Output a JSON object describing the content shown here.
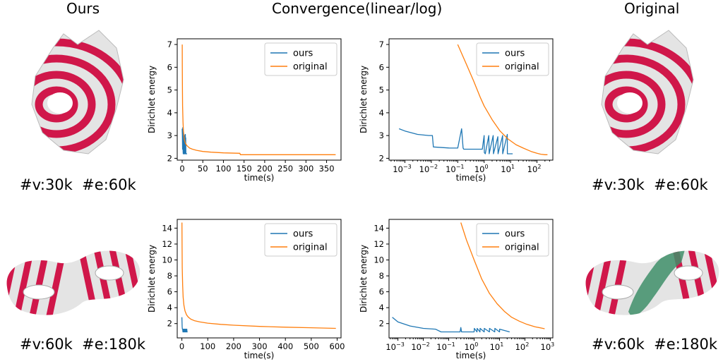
{
  "headers": {
    "ours": "Ours",
    "convergence": "Convergence(linear/log)",
    "original": "Original"
  },
  "rows": [
    {
      "stats_left": "#v:30k  #e:60k",
      "stats_right": "#v:30k  #e:60k"
    },
    {
      "stats_left": "#v:60k  #e:180k",
      "stats_right": "#v:60k  #e:180k"
    }
  ],
  "colors": {
    "ours": "#1f77b4",
    "original": "#ff7f0e",
    "stripe_red": "#d0174a",
    "stripe_white": "#e4e4e4",
    "seam_green": "#3f8f6a"
  },
  "icons": [
    "cat-head-mesh",
    "double-torus-mesh"
  ],
  "chart_data": [
    {
      "type": "line",
      "scale": "linear",
      "xlabel": "time(s)",
      "ylabel": "Dirichlet energy",
      "xlim": [
        -12,
        385
      ],
      "ylim": [
        1.92,
        7.25
      ],
      "xticks": [
        0,
        50,
        100,
        150,
        200,
        250,
        300,
        350
      ],
      "yticks": [
        2,
        3,
        4,
        5,
        6,
        7
      ],
      "legend": "top-right",
      "series": [
        {
          "name": "ours",
          "color": "#1f77b4",
          "x": [
            0,
            0.5,
            1,
            1.5,
            2,
            2.5,
            3,
            3.3,
            3.6,
            4,
            4.5,
            5,
            5.3,
            5.6,
            6,
            6.5,
            7,
            7.3,
            7.6,
            8,
            8.5,
            9,
            9.3,
            10,
            12
          ],
          "y": [
            3.3,
            3.0,
            2.4,
            3.35,
            2.4,
            2.2,
            2.9,
            2.2,
            3.0,
            2.2,
            3.05,
            2.2,
            2.9,
            2.2,
            3.0,
            2.2,
            2.9,
            2.2,
            3.05,
            2.2,
            2.9,
            2.2,
            2.2,
            2.2,
            2.2
          ]
        },
        {
          "name": "original",
          "color": "#ff7f0e",
          "x": [
            0.1,
            0.3,
            0.6,
            1,
            2,
            3,
            5,
            8,
            12,
            18,
            25,
            35,
            50,
            70,
            100,
            140,
            141,
            200,
            260,
            320,
            372
          ],
          "y": [
            7.0,
            6.0,
            5.0,
            4.3,
            3.6,
            3.2,
            2.85,
            2.65,
            2.55,
            2.45,
            2.4,
            2.35,
            2.3,
            2.27,
            2.24,
            2.22,
            2.16,
            2.16,
            2.16,
            2.16,
            2.16
          ]
        }
      ]
    },
    {
      "type": "line",
      "scale": "log-x",
      "xlabel": "time(s)",
      "ylabel": "Dirichlet energy",
      "xlim_log10": [
        -3.6,
        2.6
      ],
      "ylim": [
        1.92,
        7.25
      ],
      "xtick_exponents": [
        -3,
        -2,
        -1,
        0,
        1,
        2
      ],
      "yticks": [
        2,
        3,
        4,
        5,
        6,
        7
      ],
      "legend": "top-right",
      "series": [
        {
          "name": "ours",
          "color": "#1f77b4",
          "x": [
            0.0006,
            0.001,
            0.003,
            0.008,
            0.011,
            0.012,
            0.05,
            0.1,
            0.14,
            0.16,
            0.17,
            0.5,
            0.85,
            1.0,
            1.02,
            1.1,
            1.5,
            1.55,
            2.2,
            2.25,
            3.3,
            3.35,
            5.0,
            5.05,
            7.5,
            7.55,
            12
          ],
          "y": [
            3.3,
            3.2,
            3.05,
            3.0,
            3.0,
            2.5,
            2.45,
            2.45,
            3.3,
            2.45,
            2.4,
            2.4,
            2.4,
            3.0,
            2.25,
            2.2,
            3.0,
            2.2,
            3.0,
            2.2,
            2.95,
            2.2,
            3.0,
            2.2,
            3.05,
            2.2,
            2.2
          ]
        },
        {
          "name": "original",
          "color": "#ff7f0e",
          "x": [
            0.1,
            0.2,
            0.4,
            0.7,
            1,
            2,
            4,
            8,
            16,
            30,
            60,
            100,
            140,
            200,
            250
          ],
          "y": [
            7.0,
            6.2,
            5.4,
            4.7,
            4.3,
            3.7,
            3.2,
            2.85,
            2.6,
            2.45,
            2.3,
            2.22,
            2.18,
            2.16,
            2.16
          ]
        }
      ]
    },
    {
      "type": "line",
      "scale": "linear",
      "xlabel": "time(s)",
      "ylabel": "Dirichlet energy",
      "xlim": [
        -18,
        615
      ],
      "ylim": [
        0.2,
        15.1
      ],
      "xticks": [
        0,
        100,
        200,
        300,
        400,
        500,
        600
      ],
      "yticks": [
        2,
        4,
        6,
        8,
        10,
        12,
        14
      ],
      "legend": "top-right",
      "series": [
        {
          "name": "ours",
          "color": "#1f77b4",
          "x": [
            0,
            1,
            2,
            3,
            4,
            5,
            6,
            7,
            8,
            9,
            10,
            11,
            12,
            13,
            14,
            15,
            16,
            17,
            18,
            19,
            20,
            22
          ],
          "y": [
            2.8,
            1.6,
            1.3,
            1.3,
            0.95,
            1.3,
            0.95,
            1.3,
            0.95,
            1.3,
            0.95,
            1.3,
            0.95,
            1.3,
            0.95,
            1.3,
            0.95,
            1.3,
            0.95,
            1.3,
            0.95,
            0.95
          ]
        },
        {
          "name": "original",
          "color": "#ff7f0e",
          "x": [
            0.3,
            0.8,
            1.5,
            3,
            5,
            8,
            12,
            18,
            25,
            35,
            50,
            70,
            100,
            150,
            200,
            300,
            400,
            500,
            595
          ],
          "y": [
            14.7,
            11.5,
            9.0,
            6.8,
            5.3,
            4.3,
            3.6,
            3.1,
            2.8,
            2.55,
            2.35,
            2.2,
            2.05,
            1.9,
            1.8,
            1.65,
            1.55,
            1.48,
            1.4
          ]
        }
      ]
    },
    {
      "type": "line",
      "scale": "log-x",
      "xlabel": "time(s)",
      "ylabel": "Dirichlet energy",
      "xlim_log10": [
        -3.35,
        3.1
      ],
      "ylim": [
        0.2,
        15.1
      ],
      "xtick_exponents": [
        -3,
        -2,
        -1,
        0,
        1,
        2,
        3
      ],
      "yticks": [
        2,
        4,
        6,
        8,
        10,
        12,
        14
      ],
      "legend": "top-right",
      "series": [
        {
          "name": "ours",
          "color": "#1f77b4",
          "x": [
            0.0006,
            0.001,
            0.003,
            0.01,
            0.03,
            0.05,
            0.1,
            0.28,
            0.3,
            0.32,
            1.0,
            1.02,
            1.3,
            1.32,
            1.7,
            1.72,
            2.5,
            2.52,
            4.0,
            4.05,
            6.5,
            6.55,
            10,
            10.1,
            25
          ],
          "y": [
            2.8,
            2.2,
            1.7,
            1.4,
            1.3,
            0.95,
            0.95,
            0.95,
            1.5,
            0.95,
            0.95,
            1.4,
            0.95,
            1.4,
            0.95,
            1.4,
            0.95,
            1.4,
            0.95,
            1.4,
            0.95,
            1.4,
            0.95,
            1.3,
            0.95
          ]
        },
        {
          "name": "original",
          "color": "#ff7f0e",
          "x": [
            0.3,
            0.5,
            1,
            2,
            4,
            8,
            16,
            30,
            60,
            120,
            250,
            600
          ],
          "y": [
            14.7,
            12.5,
            10.0,
            7.6,
            5.8,
            4.5,
            3.5,
            2.8,
            2.3,
            1.9,
            1.6,
            1.35
          ]
        }
      ]
    }
  ]
}
